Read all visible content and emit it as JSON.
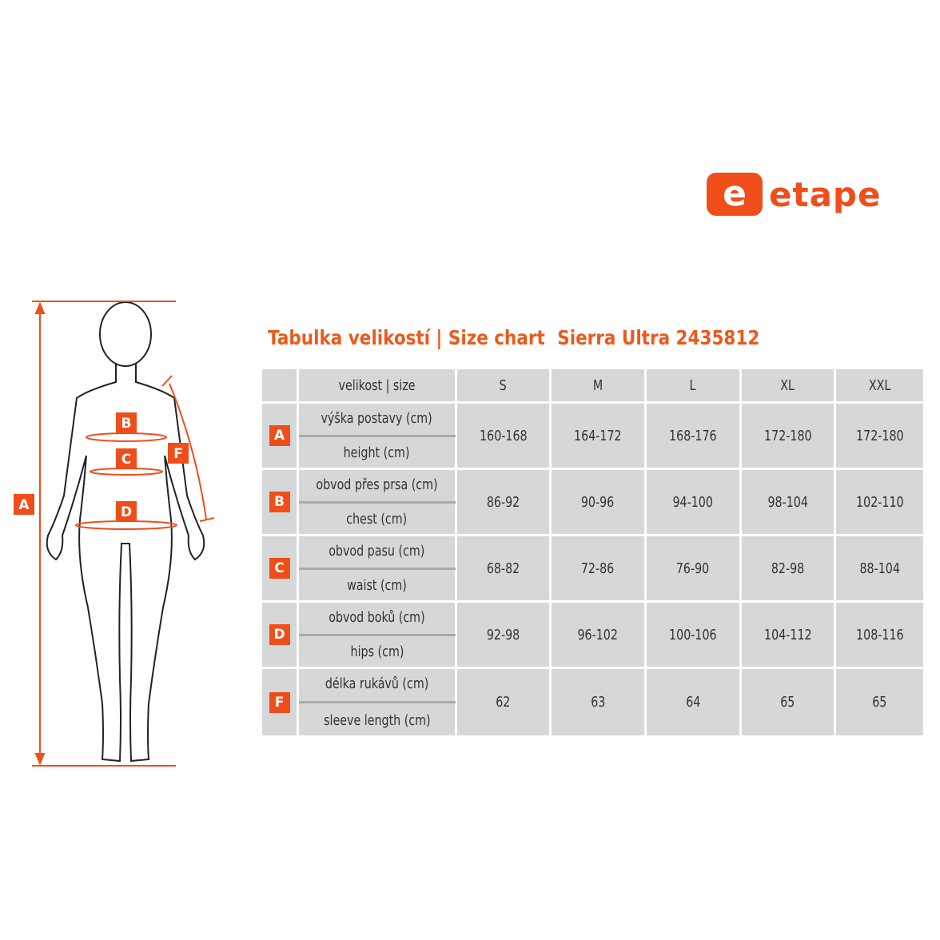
{
  "logo": {
    "mark": "e",
    "text": "etape"
  },
  "title": {
    "cz": "Tabulka velikostí | Size chart",
    "product": "Sierra Ultra 2435812"
  },
  "colors": {
    "accent": "#ef4e1b",
    "cell": "#d5d7d9"
  },
  "figure": {
    "labels": [
      "A",
      "B",
      "C",
      "D",
      "F"
    ]
  },
  "table": {
    "header": {
      "label": "velikost | size",
      "sizes": [
        "S",
        "M",
        "L",
        "XL",
        "XXL"
      ]
    },
    "rows": [
      {
        "code": "A",
        "cz": "výška postavy (cm)",
        "en": "height (cm)",
        "values": [
          "160-168",
          "164-172",
          "168-176",
          "172-180",
          "172-180"
        ]
      },
      {
        "code": "B",
        "cz": "obvod přes prsa (cm)",
        "en": "chest (cm)",
        "values": [
          "86-92",
          "90-96",
          "94-100",
          "98-104",
          "102-110"
        ]
      },
      {
        "code": "C",
        "cz": "obvod pasu (cm)",
        "en": "waist (cm)",
        "values": [
          "68-82",
          "72-86",
          "76-90",
          "82-98",
          "88-104"
        ]
      },
      {
        "code": "D",
        "cz": "obvod boků (cm)",
        "en": "hips (cm)",
        "values": [
          "92-98",
          "96-102",
          "100-106",
          "104-112",
          "108-116"
        ]
      },
      {
        "code": "F",
        "cz": "délka rukávů (cm)",
        "en": "sleeve length (cm)",
        "values": [
          "62",
          "63",
          "64",
          "65",
          "65"
        ]
      }
    ]
  }
}
